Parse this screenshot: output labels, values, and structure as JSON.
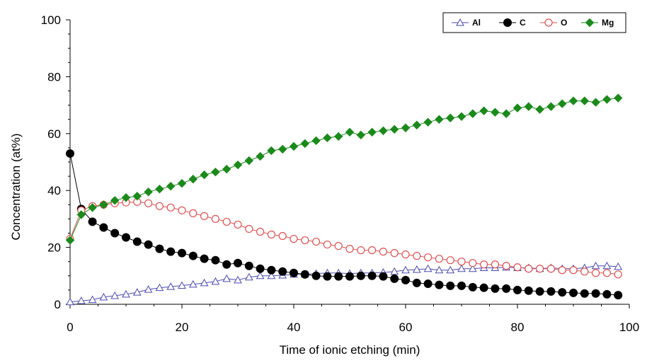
{
  "chart_data": {
    "type": "line",
    "title": "",
    "xlabel": "Time of ionic etching (min)",
    "ylabel": "Concentration (at%)",
    "xlim": [
      0,
      100
    ],
    "ylim": [
      0,
      100
    ],
    "xticks": [
      0,
      20,
      40,
      60,
      80,
      100
    ],
    "yticks": [
      0,
      20,
      40,
      60,
      80,
      100
    ],
    "grid": false,
    "legend": {
      "position": "top-right",
      "orientation": "horizontal"
    },
    "series": [
      {
        "name": "Al",
        "marker": "open-triangle",
        "color": "#4a4ab5",
        "points": [
          [
            0,
            0.8
          ],
          [
            2,
            1.2
          ],
          [
            4,
            1.6
          ],
          [
            6,
            2.5
          ],
          [
            8,
            3.0
          ],
          [
            10,
            3.5
          ],
          [
            12,
            4.2
          ],
          [
            14,
            5.2
          ],
          [
            16,
            5.8
          ],
          [
            18,
            6.2
          ],
          [
            20,
            6.6
          ],
          [
            22,
            7.0
          ],
          [
            24,
            7.5
          ],
          [
            26,
            8.0
          ],
          [
            28,
            9.0
          ],
          [
            30,
            8.5
          ],
          [
            32,
            9.5
          ],
          [
            34,
            10.0
          ],
          [
            36,
            10.0
          ],
          [
            38,
            10.2
          ],
          [
            40,
            10.5
          ],
          [
            42,
            10.5
          ],
          [
            44,
            10.8
          ],
          [
            46,
            11.0
          ],
          [
            48,
            11.0
          ],
          [
            50,
            10.8
          ],
          [
            52,
            11.0
          ],
          [
            54,
            11.0
          ],
          [
            56,
            11.2
          ],
          [
            58,
            11.5
          ],
          [
            60,
            12.0
          ],
          [
            62,
            12.2
          ],
          [
            64,
            12.5
          ],
          [
            66,
            12.0
          ],
          [
            68,
            12.0
          ],
          [
            70,
            12.5
          ],
          [
            72,
            12.5
          ],
          [
            74,
            12.8
          ],
          [
            76,
            12.8
          ],
          [
            78,
            13.0
          ],
          [
            80,
            12.8
          ],
          [
            82,
            12.8
          ],
          [
            84,
            12.5
          ],
          [
            86,
            12.8
          ],
          [
            88,
            12.5
          ],
          [
            90,
            12.5
          ],
          [
            92,
            12.8
          ],
          [
            94,
            13.5
          ],
          [
            96,
            13.5
          ],
          [
            98,
            13.2
          ]
        ]
      },
      {
        "name": "C",
        "marker": "filled-circle",
        "color": "#000000",
        "points": [
          [
            0,
            53.0
          ],
          [
            2,
            33.5
          ],
          [
            4,
            29.0
          ],
          [
            6,
            27.0
          ],
          [
            8,
            25.0
          ],
          [
            10,
            23.5
          ],
          [
            12,
            22.0
          ],
          [
            14,
            21.0
          ],
          [
            16,
            19.5
          ],
          [
            18,
            18.5
          ],
          [
            20,
            18.0
          ],
          [
            22,
            17.0
          ],
          [
            24,
            16.0
          ],
          [
            26,
            15.5
          ],
          [
            28,
            14.0
          ],
          [
            30,
            14.5
          ],
          [
            32,
            13.5
          ],
          [
            34,
            12.5
          ],
          [
            36,
            12.0
          ],
          [
            38,
            11.5
          ],
          [
            40,
            11.0
          ],
          [
            42,
            10.5
          ],
          [
            44,
            10.0
          ],
          [
            46,
            9.8
          ],
          [
            48,
            9.8
          ],
          [
            50,
            9.8
          ],
          [
            52,
            10.0
          ],
          [
            54,
            10.0
          ],
          [
            56,
            9.8
          ],
          [
            58,
            9.0
          ],
          [
            60,
            8.5
          ],
          [
            62,
            7.5
          ],
          [
            64,
            7.2
          ],
          [
            66,
            6.8
          ],
          [
            68,
            6.5
          ],
          [
            70,
            6.5
          ],
          [
            72,
            6.0
          ],
          [
            74,
            5.8
          ],
          [
            76,
            5.5
          ],
          [
            78,
            5.5
          ],
          [
            80,
            5.0
          ],
          [
            82,
            4.8
          ],
          [
            84,
            4.5
          ],
          [
            86,
            4.5
          ],
          [
            88,
            4.2
          ],
          [
            90,
            4.0
          ],
          [
            92,
            3.8
          ],
          [
            94,
            3.8
          ],
          [
            96,
            3.5
          ],
          [
            98,
            3.2
          ]
        ]
      },
      {
        "name": "O",
        "marker": "open-circle",
        "color": "#e05050",
        "points": [
          [
            0,
            23.0
          ],
          [
            2,
            33.0
          ],
          [
            4,
            34.5
          ],
          [
            6,
            35.0
          ],
          [
            8,
            35.5
          ],
          [
            10,
            35.8
          ],
          [
            12,
            36.0
          ],
          [
            14,
            35.5
          ],
          [
            16,
            34.5
          ],
          [
            18,
            34.0
          ],
          [
            20,
            33.0
          ],
          [
            22,
            32.0
          ],
          [
            24,
            31.0
          ],
          [
            26,
            30.0
          ],
          [
            28,
            29.0
          ],
          [
            30,
            28.0
          ],
          [
            32,
            26.5
          ],
          [
            34,
            25.5
          ],
          [
            36,
            24.5
          ],
          [
            38,
            24.0
          ],
          [
            40,
            23.0
          ],
          [
            42,
            22.5
          ],
          [
            44,
            22.0
          ],
          [
            46,
            21.0
          ],
          [
            48,
            20.5
          ],
          [
            50,
            19.5
          ],
          [
            52,
            19.0
          ],
          [
            54,
            19.0
          ],
          [
            56,
            18.5
          ],
          [
            58,
            18.0
          ],
          [
            60,
            17.5
          ],
          [
            62,
            17.0
          ],
          [
            64,
            16.5
          ],
          [
            66,
            16.0
          ],
          [
            68,
            15.5
          ],
          [
            70,
            15.0
          ],
          [
            72,
            14.5
          ],
          [
            74,
            14.0
          ],
          [
            76,
            14.0
          ],
          [
            78,
            13.5
          ],
          [
            80,
            13.0
          ],
          [
            82,
            12.5
          ],
          [
            84,
            12.5
          ],
          [
            86,
            12.5
          ],
          [
            88,
            12.0
          ],
          [
            90,
            12.0
          ],
          [
            92,
            11.5
          ],
          [
            94,
            11.0
          ],
          [
            96,
            11.0
          ],
          [
            98,
            10.5
          ]
        ]
      },
      {
        "name": "Mg",
        "marker": "filled-diamond",
        "color": "#1a8a1a",
        "points": [
          [
            0,
            22.5
          ],
          [
            2,
            31.5
          ],
          [
            4,
            34.0
          ],
          [
            6,
            35.0
          ],
          [
            8,
            36.5
          ],
          [
            10,
            37.5
          ],
          [
            12,
            38.0
          ],
          [
            14,
            39.5
          ],
          [
            16,
            40.5
          ],
          [
            18,
            41.5
          ],
          [
            20,
            42.5
          ],
          [
            22,
            44.0
          ],
          [
            24,
            45.5
          ],
          [
            26,
            46.5
          ],
          [
            28,
            47.5
          ],
          [
            30,
            49.0
          ],
          [
            32,
            50.5
          ],
          [
            34,
            52.0
          ],
          [
            36,
            54.0
          ],
          [
            38,
            54.5
          ],
          [
            40,
            55.5
          ],
          [
            42,
            56.5
          ],
          [
            44,
            57.5
          ],
          [
            46,
            58.5
          ],
          [
            48,
            59.0
          ],
          [
            50,
            60.5
          ],
          [
            52,
            59.5
          ],
          [
            54,
            60.5
          ],
          [
            56,
            61.0
          ],
          [
            58,
            61.5
          ],
          [
            60,
            62.0
          ],
          [
            62,
            63.0
          ],
          [
            64,
            64.0
          ],
          [
            66,
            65.0
          ],
          [
            68,
            65.5
          ],
          [
            70,
            66.0
          ],
          [
            72,
            67.0
          ],
          [
            74,
            68.0
          ],
          [
            76,
            67.5
          ],
          [
            78,
            67.0
          ],
          [
            80,
            69.0
          ],
          [
            82,
            69.5
          ],
          [
            84,
            68.5
          ],
          [
            86,
            69.5
          ],
          [
            88,
            70.5
          ],
          [
            90,
            71.5
          ],
          [
            92,
            71.5
          ],
          [
            94,
            71.0
          ],
          [
            96,
            72.0
          ],
          [
            98,
            72.5
          ]
        ]
      }
    ]
  }
}
